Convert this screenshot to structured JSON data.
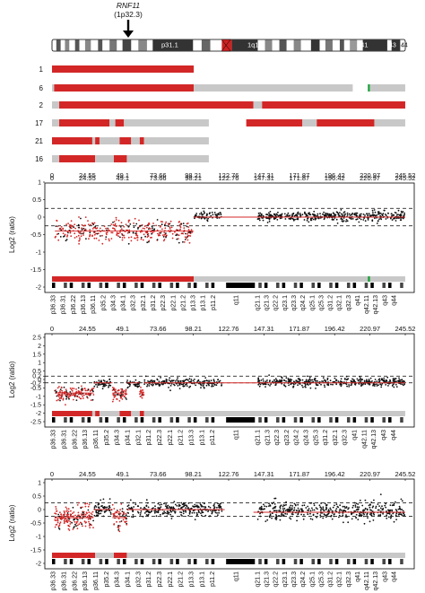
{
  "gene": {
    "name": "RNF11",
    "band": "(1p32.3)"
  },
  "ideogram": {
    "labels": [
      "p31.1",
      "1q12",
      "q41",
      "43",
      "44"
    ]
  },
  "colors": {
    "loss": "#d32727",
    "gain": "#1aa33a",
    "neutral": "#c8c8c8",
    "points": "#111111",
    "seg": "#d32727"
  },
  "sample_tracks": [
    {
      "id": "1",
      "segments": [
        [
          0,
          98.5,
          "loss"
        ],
        [
          98.5,
          245.5,
          "none"
        ]
      ]
    },
    {
      "id": "6",
      "segments": [
        [
          0,
          1.5,
          "neutral"
        ],
        [
          1.5,
          98.5,
          "loss"
        ],
        [
          98.5,
          209,
          "neutral"
        ],
        [
          219.5,
          221,
          "gain"
        ],
        [
          221,
          245.5,
          "neutral"
        ]
      ]
    },
    {
      "id": "2",
      "segments": [
        [
          0,
          5,
          "neutral"
        ],
        [
          5,
          140,
          "loss"
        ],
        [
          140,
          146,
          "neutral"
        ],
        [
          146,
          245.5,
          "loss"
        ]
      ]
    },
    {
      "id": "17",
      "segments": [
        [
          0,
          5,
          "neutral"
        ],
        [
          5,
          40,
          "loss"
        ],
        [
          40,
          44,
          "neutral"
        ],
        [
          44,
          50,
          "loss"
        ],
        [
          50,
          109,
          "neutral"
        ],
        [
          135,
          174,
          "loss"
        ],
        [
          174,
          184,
          "neutral"
        ],
        [
          184,
          224,
          "loss"
        ],
        [
          224,
          245.5,
          "neutral"
        ]
      ]
    },
    {
      "id": "21",
      "segments": [
        [
          0,
          28,
          "loss"
        ],
        [
          28,
          30,
          "neutral"
        ],
        [
          30,
          33,
          "loss"
        ],
        [
          33,
          47,
          "neutral"
        ],
        [
          47,
          55,
          "loss"
        ],
        [
          55,
          61,
          "neutral"
        ],
        [
          61,
          64,
          "loss"
        ],
        [
          64,
          109,
          "neutral"
        ]
      ]
    },
    {
      "id": "16",
      "segments": [
        [
          0,
          5,
          "neutral"
        ],
        [
          5,
          30,
          "loss"
        ],
        [
          30,
          43,
          "neutral"
        ],
        [
          43,
          52,
          "loss"
        ],
        [
          52,
          109,
          "neutral"
        ]
      ]
    }
  ],
  "chart_data": [
    {
      "type": "scatter",
      "xlabel": "",
      "ylabel": "Log2 (ratio)",
      "xlim": [
        0,
        245.52
      ],
      "ylim": [
        -2,
        1
      ],
      "x_ticks": [
        "0",
        "24.55",
        "49.1",
        "73.66",
        "98.21",
        "122.76",
        "147.31",
        "171.87",
        "196.42",
        "220.97",
        "245.52"
      ],
      "y_ticks": [
        "1",
        "0.5",
        "0",
        "-0.5",
        "-1",
        "-1.5",
        "-2"
      ],
      "thresholds": [
        0.25,
        -0.25
      ],
      "segments": [
        {
          "x": [
            2,
            98.3
          ],
          "y": -0.4
        },
        {
          "x": [
            98.3,
            245.5
          ],
          "y": 0.0
        }
      ],
      "band_labels": [
        "p36.33",
        "p36.31",
        "p36.22",
        "p36.13",
        "p36.11",
        "p35.2",
        "p34.3",
        "p34.1",
        "p32.3",
        "p32.1",
        "p31.2",
        "p22.3",
        "p22.1",
        "p21.2",
        "p13.3",
        "p13.1",
        "p11.2",
        "q11",
        "q21.1",
        "q21.3",
        "q22.2",
        "q23.1",
        "q23.3",
        "q24.2",
        "q25.1",
        "q25.3",
        "q31.2",
        "q32.1",
        "q32.3",
        "q41",
        "q42.11",
        "q42.13",
        "q43",
        "q44"
      ],
      "overlay": [
        [
          0,
          98.5,
          "loss"
        ],
        [
          98.5,
          245.5,
          "neutral"
        ],
        [
          219.5,
          221,
          "gain"
        ]
      ]
    },
    {
      "type": "scatter",
      "xlabel": "",
      "ylabel": "Log2 (ratio)",
      "xlim": [
        0,
        245.52
      ],
      "ylim": [
        -2.5,
        2.5
      ],
      "x_ticks": [
        "0",
        "24.55",
        "49.1",
        "73.66",
        "98.21",
        "122.76",
        "147.31",
        "171.87",
        "196.42",
        "220.97",
        "245.52"
      ],
      "y_ticks": [
        "2.5",
        "2",
        "1.5",
        "1",
        "0.5",
        "0.2",
        "0",
        "-0.2",
        "-0.5",
        "-1",
        "-1.5",
        "-2",
        "-2.5"
      ],
      "thresholds": [
        0.2,
        -0.2
      ],
      "segments": [
        {
          "x": [
            2,
            29
          ],
          "y": -0.8
        },
        {
          "x": [
            29,
            42
          ],
          "y": -0.2
        },
        {
          "x": [
            42,
            52
          ],
          "y": -0.8
        },
        {
          "x": [
            52,
            61
          ],
          "y": -0.2
        },
        {
          "x": [
            61,
            64
          ],
          "y": -0.8
        },
        {
          "x": [
            64,
            245.5
          ],
          "y": -0.2
        }
      ],
      "band_labels": [
        "p36.33",
        "p36.31",
        "p36.22",
        "p36.13",
        "p36.11",
        "p35.2",
        "p34.3",
        "p34.1",
        "p32.1",
        "p31.2",
        "p22.3",
        "p22.1",
        "p21.2",
        "p13.3",
        "p13.1",
        "p11.2",
        "q11",
        "q21.1",
        "q21.3",
        "q22.3",
        "q23.2",
        "q24.2",
        "q24.3",
        "q25.3",
        "q31.2",
        "q32.1",
        "q32.3",
        "q41",
        "q42.11",
        "q42.13",
        "q43",
        "q44"
      ],
      "overlay": [
        [
          0,
          28,
          "loss"
        ],
        [
          28,
          30,
          "neutral"
        ],
        [
          30,
          33,
          "loss"
        ],
        [
          33,
          47,
          "neutral"
        ],
        [
          47,
          55,
          "loss"
        ],
        [
          55,
          61,
          "neutral"
        ],
        [
          61,
          64,
          "loss"
        ],
        [
          64,
          245.5,
          "neutral"
        ]
      ]
    },
    {
      "type": "scatter",
      "xlabel": "",
      "ylabel": "Log2 (ratio)",
      "xlim": [
        0,
        245.52
      ],
      "ylim": [
        -2,
        1
      ],
      "x_ticks": [
        "0",
        "24.55",
        "49.1",
        "73.66",
        "98.21",
        "122.76",
        "147.31",
        "171.87",
        "196.42",
        "220.97",
        "245.52"
      ],
      "y_ticks": [
        "1",
        "0.5",
        "0",
        "-0.5",
        "-1",
        "-1.5",
        "-2"
      ],
      "thresholds": [
        0.25,
        -0.25
      ],
      "segments": [
        {
          "x": [
            2,
            29
          ],
          "y": -0.3
        },
        {
          "x": [
            29,
            42
          ],
          "y": 0.0
        },
        {
          "x": [
            42,
            52
          ],
          "y": -0.3
        },
        {
          "x": [
            52,
            120
          ],
          "y": 0.0
        },
        {
          "x": [
            140,
            245.5
          ],
          "y": -0.1
        }
      ],
      "band_labels": [
        "p36.33",
        "p36.31",
        "p36.22",
        "p36.13",
        "p36.11",
        "p35.2",
        "p34.3",
        "p34.1",
        "p32.3",
        "p31.2",
        "p22.3",
        "p22.1",
        "p21.2",
        "p13.3",
        "p13.1",
        "p11.2",
        "q11",
        "q21.1",
        "q21.3",
        "q22.2",
        "q23.1",
        "q23.3",
        "q24.2",
        "q25.1",
        "q25.3",
        "q31.2",
        "q32.1",
        "q32.3",
        "q41",
        "q42.11",
        "q42.13",
        "q43",
        "q44"
      ],
      "overlay": [
        [
          0,
          30,
          "loss"
        ],
        [
          30,
          43,
          "neutral"
        ],
        [
          43,
          52,
          "loss"
        ],
        [
          52,
          245.5,
          "neutral"
        ]
      ]
    }
  ]
}
